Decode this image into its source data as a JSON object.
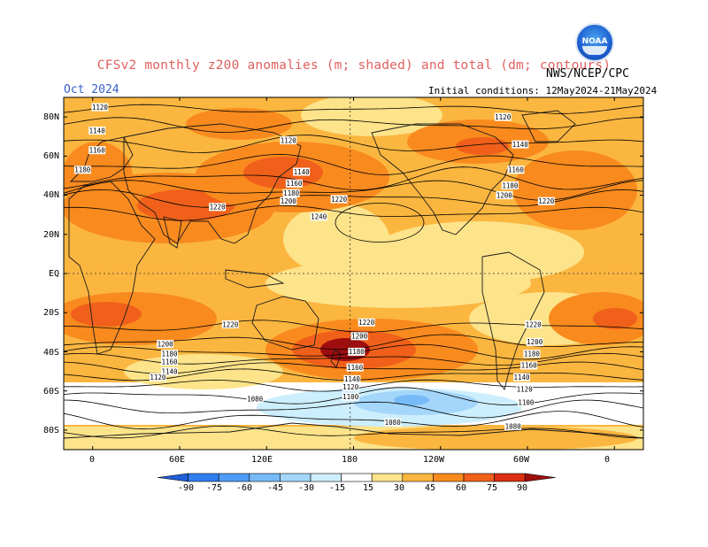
{
  "header": {
    "title": "CFSv2 monthly z200 anomalies (m; shaded) and total (dm; contours)",
    "month": "Oct 2024",
    "agency": "NWS/NCEP/CPC",
    "logo_text": "NOAA",
    "initial_conditions": "Initial conditions: 12May2024-21May2024"
  },
  "axes": {
    "lat_labels": [
      "80N",
      "60N",
      "40N",
      "20N",
      "EQ",
      "20S",
      "40S",
      "60S",
      "80S"
    ],
    "lon_labels": [
      "0",
      "60E",
      "120E",
      "180",
      "120W",
      "60W",
      "0"
    ]
  },
  "colorbar": {
    "labels": [
      "-90",
      "-75",
      "-60",
      "-45",
      "-30",
      "-15",
      "15",
      "30",
      "45",
      "60",
      "75",
      "90"
    ],
    "colors": [
      "#1f5fd8",
      "#2f7ef0",
      "#4f9cf6",
      "#76baf8",
      "#a3d6fa",
      "#cdeefc",
      "#ffffff",
      "#fde38a",
      "#fbb640",
      "#f98a1e",
      "#f0601a",
      "#dc2e12",
      "#9e0e0e"
    ]
  },
  "contour_labels": [
    {
      "text": "1120",
      "lon": 5,
      "lat": 85
    },
    {
      "text": "1140",
      "lon": 3,
      "lat": 73
    },
    {
      "text": "1160",
      "lon": 3,
      "lat": 63
    },
    {
      "text": "1180",
      "lon": -7,
      "lat": 53
    },
    {
      "text": "1220",
      "lon": 86,
      "lat": 34
    },
    {
      "text": "1120",
      "lon": 135,
      "lat": 68
    },
    {
      "text": "1140",
      "lon": 144,
      "lat": 52
    },
    {
      "text": "1160",
      "lon": 139,
      "lat": 46
    },
    {
      "text": "1180",
      "lon": 137,
      "lat": 41
    },
    {
      "text": "1200",
      "lon": 135,
      "lat": 37
    },
    {
      "text": "1220",
      "lon": 170,
      "lat": 38
    },
    {
      "text": "1240",
      "lon": 156,
      "lat": 29
    },
    {
      "text": "1120",
      "lon": 283,
      "lat": 80
    },
    {
      "text": "1140",
      "lon": 295,
      "lat": 66
    },
    {
      "text": "1160",
      "lon": 292,
      "lat": 53
    },
    {
      "text": "1180",
      "lon": 288,
      "lat": 45
    },
    {
      "text": "1200",
      "lon": 284,
      "lat": 40
    },
    {
      "text": "1220",
      "lon": 313,
      "lat": 37
    },
    {
      "text": "1220",
      "lon": 95,
      "lat": -26
    },
    {
      "text": "1200",
      "lon": 50,
      "lat": -36
    },
    {
      "text": "1180",
      "lon": 53,
      "lat": -41
    },
    {
      "text": "1160",
      "lon": 53,
      "lat": -45
    },
    {
      "text": "1140",
      "lon": 53,
      "lat": -50
    },
    {
      "text": "1120",
      "lon": 45,
      "lat": -53
    },
    {
      "text": "1080",
      "lon": 112,
      "lat": -64
    },
    {
      "text": "1080",
      "lon": 207,
      "lat": -76
    },
    {
      "text": "1220",
      "lon": 189,
      "lat": -25
    },
    {
      "text": "1200",
      "lon": 184,
      "lat": -32
    },
    {
      "text": "1180",
      "lon": 182,
      "lat": -40
    },
    {
      "text": "1160",
      "lon": 181,
      "lat": -48
    },
    {
      "text": "1140",
      "lon": 179,
      "lat": -54
    },
    {
      "text": "1120",
      "lon": 178,
      "lat": -58
    },
    {
      "text": "1100",
      "lon": 178,
      "lat": -63
    },
    {
      "text": "1220",
      "lon": 304,
      "lat": -26
    },
    {
      "text": "1200",
      "lon": 305,
      "lat": -35
    },
    {
      "text": "1180",
      "lon": 303,
      "lat": -41
    },
    {
      "text": "1160",
      "lon": 301,
      "lat": -47
    },
    {
      "text": "1140",
      "lon": 296,
      "lat": -53
    },
    {
      "text": "1120",
      "lon": 298,
      "lat": -59
    },
    {
      "text": "1100",
      "lon": 299,
      "lat": -66
    },
    {
      "text": "1080",
      "lon": 290,
      "lat": -78
    }
  ]
}
